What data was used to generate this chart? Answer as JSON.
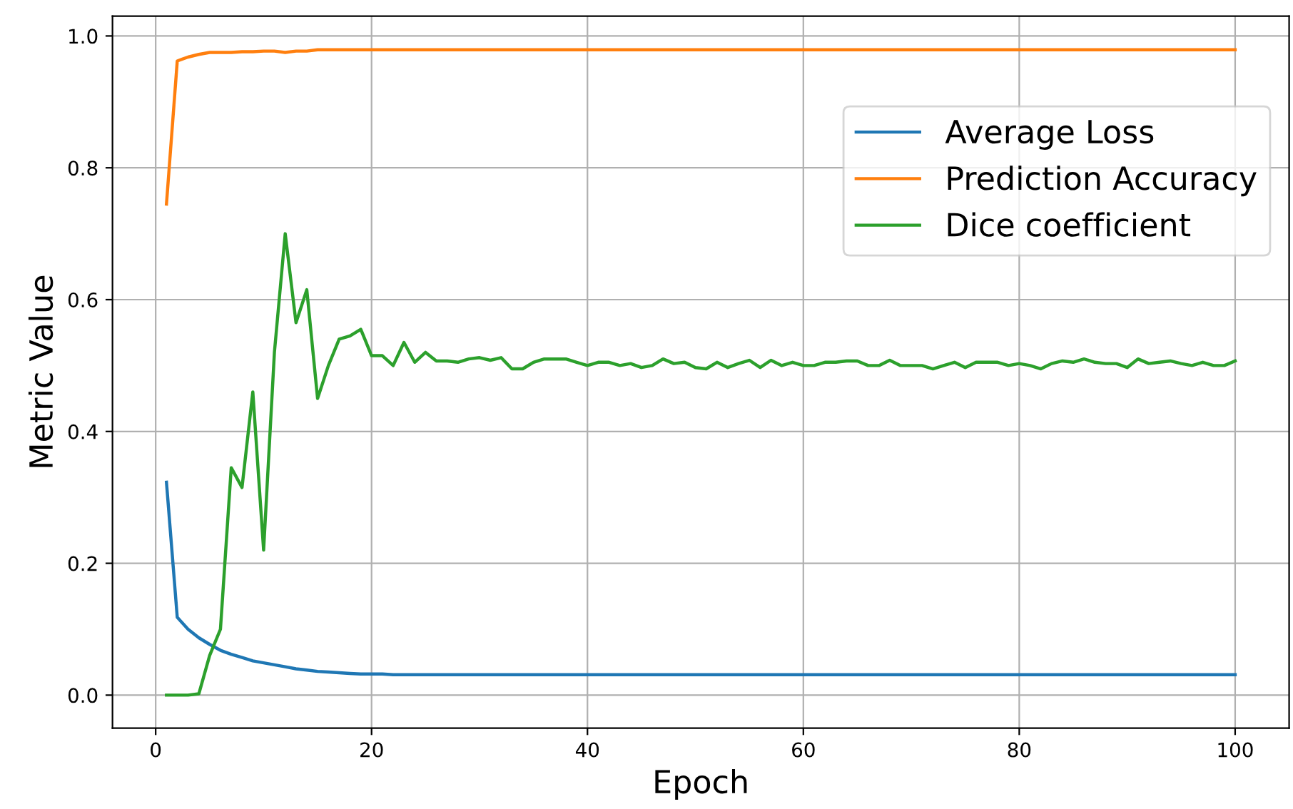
{
  "chart_data": {
    "type": "line",
    "xlabel": "Epoch",
    "ylabel": "Metric Value",
    "x": [
      1,
      2,
      3,
      4,
      5,
      6,
      7,
      8,
      9,
      10,
      11,
      12,
      13,
      14,
      15,
      16,
      17,
      18,
      19,
      20,
      21,
      22,
      23,
      24,
      25,
      26,
      27,
      28,
      29,
      30,
      31,
      32,
      33,
      34,
      35,
      36,
      37,
      38,
      39,
      40,
      41,
      42,
      43,
      44,
      45,
      46,
      47,
      48,
      49,
      50,
      51,
      52,
      53,
      54,
      55,
      56,
      57,
      58,
      59,
      60,
      61,
      62,
      63,
      64,
      65,
      66,
      67,
      68,
      69,
      70,
      71,
      72,
      73,
      74,
      75,
      76,
      77,
      78,
      79,
      80,
      81,
      82,
      83,
      84,
      85,
      86,
      87,
      88,
      89,
      90,
      91,
      92,
      93,
      94,
      95,
      96,
      97,
      98,
      99,
      100
    ],
    "series": [
      {
        "name": "Average Loss",
        "color": "#1f77b4",
        "values": [
          0.323,
          0.118,
          0.1,
          0.087,
          0.077,
          0.068,
          0.062,
          0.057,
          0.052,
          0.049,
          0.046,
          0.043,
          0.04,
          0.038,
          0.036,
          0.035,
          0.034,
          0.033,
          0.032,
          0.032,
          0.032,
          0.031,
          0.031,
          0.031,
          0.031,
          0.031,
          0.031,
          0.031,
          0.031,
          0.031,
          0.031,
          0.031,
          0.031,
          0.031,
          0.031,
          0.031,
          0.031,
          0.031,
          0.031,
          0.031,
          0.031,
          0.031,
          0.031,
          0.031,
          0.031,
          0.031,
          0.031,
          0.031,
          0.031,
          0.031,
          0.031,
          0.031,
          0.031,
          0.031,
          0.031,
          0.031,
          0.031,
          0.031,
          0.031,
          0.031,
          0.031,
          0.031,
          0.031,
          0.031,
          0.031,
          0.031,
          0.031,
          0.031,
          0.031,
          0.031,
          0.031,
          0.031,
          0.031,
          0.031,
          0.031,
          0.031,
          0.031,
          0.031,
          0.031,
          0.031,
          0.031,
          0.031,
          0.031,
          0.031,
          0.031,
          0.031,
          0.031,
          0.031,
          0.031,
          0.031,
          0.031,
          0.031,
          0.031,
          0.031,
          0.031,
          0.031,
          0.031,
          0.031,
          0.031,
          0.031
        ]
      },
      {
        "name": "Prediction Accuracy",
        "color": "#ff7f0e",
        "values": [
          0.745,
          0.962,
          0.968,
          0.972,
          0.975,
          0.975,
          0.975,
          0.976,
          0.976,
          0.977,
          0.977,
          0.975,
          0.977,
          0.977,
          0.979,
          0.979,
          0.979,
          0.979,
          0.979,
          0.979,
          0.979,
          0.979,
          0.979,
          0.979,
          0.979,
          0.979,
          0.979,
          0.979,
          0.979,
          0.979,
          0.979,
          0.979,
          0.979,
          0.979,
          0.979,
          0.979,
          0.979,
          0.979,
          0.979,
          0.979,
          0.979,
          0.979,
          0.979,
          0.979,
          0.979,
          0.979,
          0.979,
          0.979,
          0.979,
          0.979,
          0.979,
          0.979,
          0.979,
          0.979,
          0.979,
          0.979,
          0.979,
          0.979,
          0.979,
          0.979,
          0.979,
          0.979,
          0.979,
          0.979,
          0.979,
          0.979,
          0.979,
          0.979,
          0.979,
          0.979,
          0.979,
          0.979,
          0.979,
          0.979,
          0.979,
          0.979,
          0.979,
          0.979,
          0.979,
          0.979,
          0.979,
          0.979,
          0.979,
          0.979,
          0.979,
          0.979,
          0.979,
          0.979,
          0.979,
          0.979,
          0.979,
          0.979,
          0.979,
          0.979,
          0.979,
          0.979,
          0.979,
          0.979,
          0.979,
          0.979
        ]
      },
      {
        "name": "Dice coefficient",
        "color": "#2ca02c",
        "values": [
          0.0,
          0.0,
          0.0,
          0.002,
          0.06,
          0.1,
          0.345,
          0.315,
          0.46,
          0.22,
          0.52,
          0.7,
          0.565,
          0.615,
          0.45,
          0.5,
          0.54,
          0.545,
          0.555,
          0.515,
          0.515,
          0.5,
          0.535,
          0.505,
          0.52,
          0.507,
          0.507,
          0.505,
          0.51,
          0.512,
          0.508,
          0.512,
          0.495,
          0.495,
          0.505,
          0.51,
          0.51,
          0.51,
          0.505,
          0.5,
          0.505,
          0.505,
          0.5,
          0.503,
          0.497,
          0.5,
          0.51,
          0.503,
          0.505,
          0.497,
          0.495,
          0.505,
          0.497,
          0.503,
          0.508,
          0.497,
          0.508,
          0.5,
          0.505,
          0.5,
          0.5,
          0.505,
          0.505,
          0.507,
          0.507,
          0.5,
          0.5,
          0.508,
          0.5,
          0.5,
          0.5,
          0.495,
          0.5,
          0.505,
          0.497,
          0.505,
          0.505,
          0.505,
          0.5,
          0.503,
          0.5,
          0.495,
          0.503,
          0.507,
          0.505,
          0.51,
          0.505,
          0.503,
          0.503,
          0.497,
          0.51,
          0.503,
          0.505,
          0.507,
          0.503,
          0.5,
          0.505,
          0.5,
          0.5,
          0.507
        ]
      }
    ],
    "xlim": [
      -4,
      105
    ],
    "ylim": [
      -0.05,
      1.03
    ],
    "xticks": [
      0,
      20,
      40,
      60,
      80,
      100
    ],
    "yticks": [
      {
        "value": 0,
        "label": "0.0"
      },
      {
        "value": 0.2,
        "label": "0.2"
      },
      {
        "value": 0.4,
        "label": "0.4"
      },
      {
        "value": 0.6,
        "label": "0.6"
      },
      {
        "value": 0.8,
        "label": "0.8"
      },
      {
        "value": 1.0,
        "label": "1.0"
      }
    ],
    "grid": true,
    "legend": "top right",
    "marker": "none",
    "line_style": "solid"
  }
}
